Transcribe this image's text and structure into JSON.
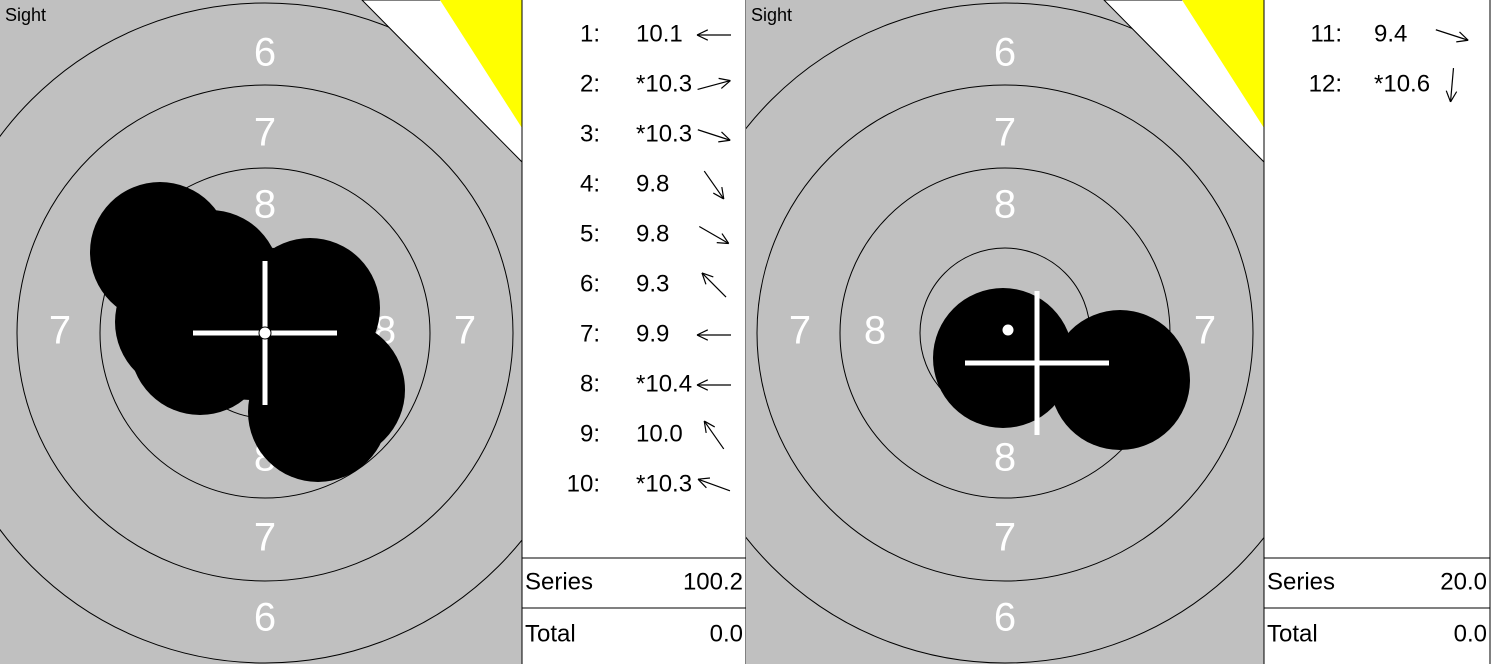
{
  "panels": [
    {
      "label": "Sight",
      "ring_labels": [
        "6",
        "7",
        "8",
        "7",
        "8",
        "8",
        "7",
        "8",
        "7",
        "6"
      ],
      "shots": [
        {
          "n": "1:",
          "score": "10.1"
        },
        {
          "n": "2:",
          "score": "*10.3"
        },
        {
          "n": "3:",
          "score": "*10.3"
        },
        {
          "n": "4:",
          "score": "9.8"
        },
        {
          "n": "5:",
          "score": "9.8"
        },
        {
          "n": "6:",
          "score": "9.3"
        },
        {
          "n": "7:",
          "score": "9.9"
        },
        {
          "n": "8:",
          "score": "*10.4"
        },
        {
          "n": "9:",
          "score": "10.0"
        },
        {
          "n": "10:",
          "score": "*10.3"
        }
      ],
      "series_label": "Series",
      "series": "100.2",
      "total_label": "Total",
      "total": "0.0"
    },
    {
      "label": "Sight",
      "ring_labels": [
        "6",
        "7",
        "8",
        "7",
        "8",
        "8",
        "7",
        "8",
        "7",
        "6"
      ],
      "shots": [
        {
          "n": "11:",
          "score": "9.4"
        },
        {
          "n": "12:",
          "score": "*10.6"
        }
      ],
      "series_label": "Series",
      "series": "20.0",
      "total_label": "Total",
      "total": "0.0"
    }
  ]
}
